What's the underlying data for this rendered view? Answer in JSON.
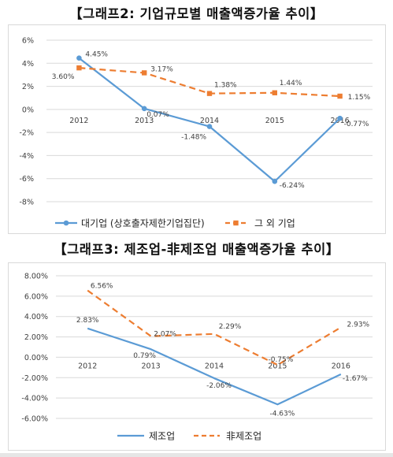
{
  "headings": {
    "chart1": "【그래프2: 기업규모별 매출액증가율 추이】",
    "chart2": "【그래프3: 제조업-非제조업 매출액증가율 추이】"
  },
  "colors": {
    "series1": "#5b9bd5",
    "series2": "#ed7d31",
    "grid": "#d9d9d9"
  },
  "chart_data": [
    {
      "type": "line",
      "title": "",
      "categories": [
        "2012",
        "2013",
        "2014",
        "2015",
        "2016"
      ],
      "ylim": [
        -8,
        6
      ],
      "yticks": [
        6,
        4,
        2,
        0,
        -2,
        -4,
        -6,
        -8
      ],
      "ytick_labels": [
        "6%",
        "4%",
        "2%",
        "0%",
        "-2%",
        "-4%",
        "-6%",
        "-8%"
      ],
      "grid": true,
      "legend_position": "bottom",
      "series": [
        {
          "name": "대기업 (상호출자제한기업집단)",
          "values": [
            4.45,
            0.07,
            -1.48,
            -6.24,
            -0.77
          ],
          "labels": [
            "4.45%",
            "0.07%",
            "-1.48%",
            "-6.24%",
            "-0.77%"
          ],
          "style": "solid",
          "marker": "circle"
        },
        {
          "name": "그 외 기업",
          "values": [
            3.6,
            3.17,
            1.38,
            1.44,
            1.15
          ],
          "labels": [
            "3.60%",
            "3.17%",
            "1.38%",
            "1.44%",
            "1.15%"
          ],
          "style": "dashed",
          "marker": "square"
        }
      ]
    },
    {
      "type": "line",
      "title": "",
      "categories": [
        "2012",
        "2013",
        "2014",
        "2015",
        "2016"
      ],
      "ylim": [
        -6,
        8
      ],
      "yticks": [
        8,
        6,
        4,
        2,
        0,
        -2,
        -4,
        -6
      ],
      "ytick_labels": [
        "8.00%",
        "6.00%",
        "4.00%",
        "2.00%",
        "0.00%",
        "-2.00%",
        "-4.00%",
        "-6.00%"
      ],
      "grid": true,
      "legend_position": "bottom",
      "series": [
        {
          "name": "제조업",
          "values": [
            2.83,
            0.79,
            -2.06,
            -4.63,
            -1.67
          ],
          "labels": [
            "2.83%",
            "0.79%",
            "-2.06%",
            "-4.63%",
            "-1.67%"
          ],
          "style": "solid",
          "marker": "none"
        },
        {
          "name": "非제조업",
          "values": [
            6.56,
            2.07,
            2.29,
            -0.75,
            2.93
          ],
          "labels": [
            "6.56%",
            "2.07%",
            "2.29%",
            "-0.75%",
            "2.93%"
          ],
          "style": "dashed",
          "marker": "none"
        }
      ]
    }
  ]
}
